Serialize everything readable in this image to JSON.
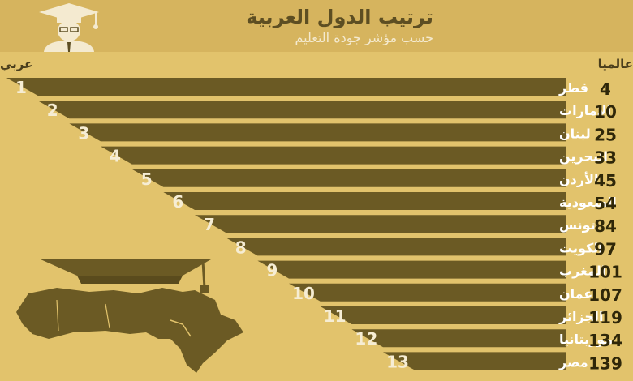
{
  "header": {
    "title": "ترتيب الدول العربية",
    "subtitle": "حسب مؤشر جودة التعليم"
  },
  "columns": {
    "arab_rank_label": "عربي",
    "world_rank_label": "عالميا"
  },
  "colors": {
    "background": "#e2c36c",
    "header": "#d6b45e",
    "bar": "#6b5a24",
    "row_gap": "#f4ead0"
  },
  "icons": [
    "graduate-icon",
    "graduation-cap-icon",
    "arab-world-map-icon"
  ],
  "chart_data": {
    "type": "bar",
    "title": "ترتيب الدول العربية",
    "subtitle": "حسب مؤشر جودة التعليم",
    "categories": [
      "قطر",
      "الإمارات",
      "لبنان",
      "البحرين",
      "الأردن",
      "السعودية",
      "تونس",
      "الكويت",
      "المغرب",
      "عمان",
      "الجزائر",
      "موريتانيا",
      "مصر"
    ],
    "arab_rank": [
      1,
      2,
      3,
      4,
      5,
      6,
      7,
      8,
      9,
      10,
      11,
      12,
      13
    ],
    "world_rank": [
      4,
      10,
      25,
      33,
      45,
      54,
      84,
      97,
      101,
      107,
      119,
      134,
      139
    ],
    "xlabel": "عربي",
    "ylabel": "عالميا"
  }
}
